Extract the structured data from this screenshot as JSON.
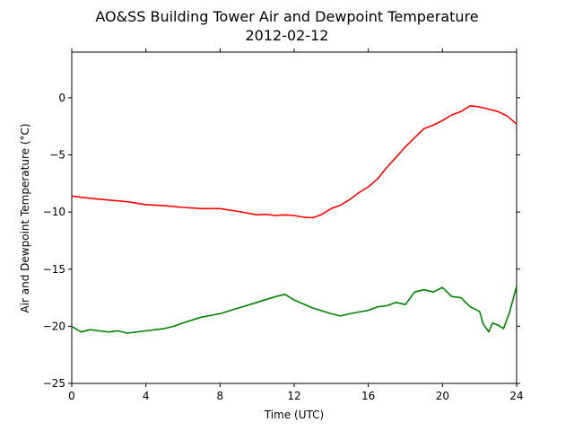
{
  "chart_data": {
    "type": "line",
    "title": "AO&SS Building Tower Air and Dewpoint Temperature",
    "subtitle": "2012-02-12",
    "xlabel": "Time (UTC)",
    "ylabel": "Air and Dewpoint Temperature (°C)",
    "xlim": [
      0,
      24
    ],
    "ylim": [
      -25,
      4
    ],
    "xticks": [
      0,
      4,
      8,
      12,
      16,
      20,
      24
    ],
    "yticks": [
      -25,
      -20,
      -15,
      -10,
      -5,
      0
    ],
    "grid": false,
    "legend": "none",
    "series": [
      {
        "color": "#ff0000",
        "x": [
          0,
          1,
          2,
          3,
          4,
          5,
          6,
          7,
          8,
          9,
          10,
          10.5,
          11,
          11.5,
          12,
          12.5,
          13,
          13.5,
          14,
          14.5,
          15,
          15.5,
          16,
          16.5,
          17,
          17.5,
          18,
          18.5,
          19,
          19.5,
          20,
          20.5,
          21,
          21.5,
          22,
          22.5,
          23,
          23.5,
          24
        ],
        "y": [
          -8.6,
          -8.8,
          -8.95,
          -9.1,
          -9.35,
          -9.45,
          -9.6,
          -9.7,
          -9.7,
          -9.95,
          -10.25,
          -10.2,
          -10.3,
          -10.25,
          -10.3,
          -10.45,
          -10.5,
          -10.2,
          -9.7,
          -9.4,
          -8.9,
          -8.3,
          -7.8,
          -7.1,
          -6.1,
          -5.2,
          -4.3,
          -3.5,
          -2.7,
          -2.4,
          -2.0,
          -1.5,
          -1.2,
          -0.7,
          -0.8,
          -1.0,
          -1.2,
          -1.6,
          -2.3
        ]
      },
      {
        "color": "#008000",
        "x": [
          0,
          0.5,
          1,
          1.5,
          2,
          2.5,
          3,
          3.5,
          4,
          4.5,
          5,
          5.5,
          6,
          7,
          8,
          9,
          10,
          11,
          11.5,
          12,
          13,
          14,
          14.5,
          15,
          16,
          16.5,
          17,
          17.5,
          18,
          18.5,
          19,
          19.5,
          20,
          20.5,
          21,
          21.5,
          22,
          22.2,
          22.5,
          22.7,
          23,
          23.3,
          23.6,
          24
        ],
        "y": [
          -20.0,
          -20.5,
          -20.3,
          -20.4,
          -20.5,
          -20.4,
          -20.6,
          -20.5,
          -20.4,
          -20.3,
          -20.2,
          -20.0,
          -19.7,
          -19.2,
          -18.9,
          -18.4,
          -17.9,
          -17.4,
          -17.2,
          -17.7,
          -18.4,
          -18.9,
          -19.1,
          -18.9,
          -18.6,
          -18.3,
          -18.2,
          -17.9,
          -18.1,
          -17.0,
          -16.8,
          -17.0,
          -16.6,
          -17.4,
          -17.5,
          -18.3,
          -18.7,
          -19.8,
          -20.5,
          -19.7,
          -19.9,
          -20.2,
          -18.9,
          -16.5
        ]
      }
    ]
  }
}
